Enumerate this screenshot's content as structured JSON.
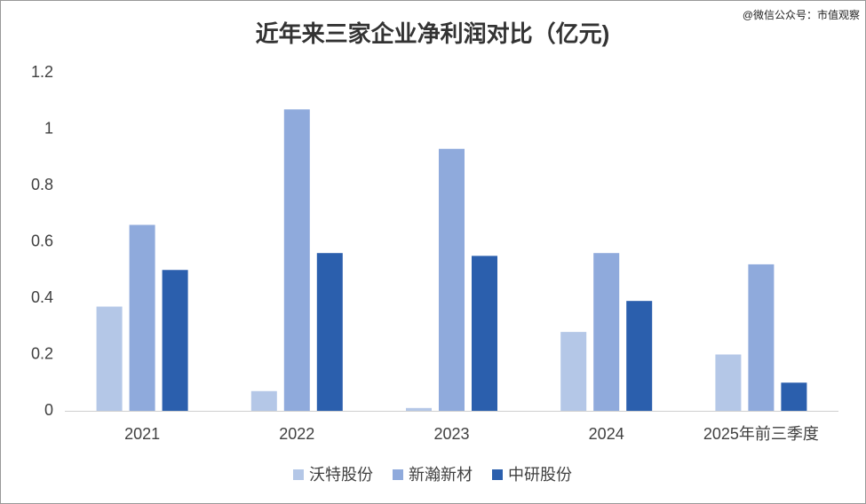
{
  "chart_data": {
    "type": "bar",
    "title": "近年来三家企业净利润对比（亿元)",
    "source": "@微信公众号：市值观察",
    "categories": [
      "2021",
      "2022",
      "2023",
      "2024",
      "2025年前三季度"
    ],
    "series": [
      {
        "name": "沃特股份",
        "color": "#b4c7e7",
        "values": [
          0.37,
          0.07,
          0.01,
          0.28,
          0.2
        ]
      },
      {
        "name": "新瀚新材",
        "color": "#8faadc",
        "values": [
          0.66,
          1.07,
          0.93,
          0.56,
          0.52
        ]
      },
      {
        "name": "中研股份",
        "color": "#2b5fad",
        "values": [
          0.5,
          0.56,
          0.55,
          0.39,
          0.1
        ]
      }
    ],
    "ylim": [
      0,
      1.2
    ],
    "yticks": [
      0,
      0.2,
      0.4,
      0.6,
      0.8,
      1,
      1.2
    ],
    "grid": false
  }
}
